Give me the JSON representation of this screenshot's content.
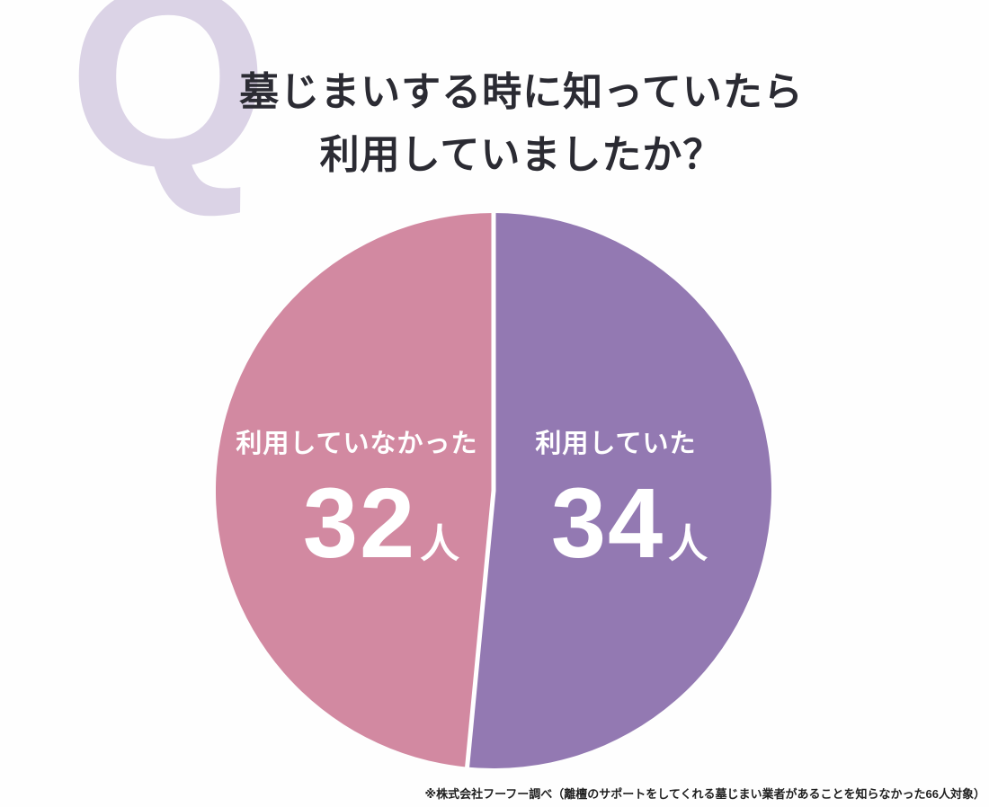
{
  "q_mark": "Q",
  "title": {
    "line1": "墓じまいする時に知っていたら",
    "line2": "利用していましたか？"
  },
  "chart_data": {
    "type": "pie",
    "title": "墓じまいする時に知っていたら利用していましたか？",
    "total": 66,
    "unit": "人",
    "legend_position": "inside",
    "slices": [
      {
        "label": "利用していなかった",
        "value": 32,
        "unit": "人",
        "color": "#d289a1",
        "side": "left"
      },
      {
        "label": "利用していた",
        "value": 34,
        "unit": "人",
        "color": "#9379b2",
        "side": "right"
      }
    ],
    "start_angle_deg": 0,
    "divider_color": "#ffffff"
  },
  "footnote": "※株式会社フーフー調べ（離檀のサポートをしてくれる墓じまい業者があることを知らなかった66人対象）",
  "colors": {
    "background": "#fefefe",
    "q_mark": "#dbd3e6",
    "title_text": "#2b2b33",
    "slice_text": "#ffffff",
    "footnote_text": "#1f1f1f"
  }
}
